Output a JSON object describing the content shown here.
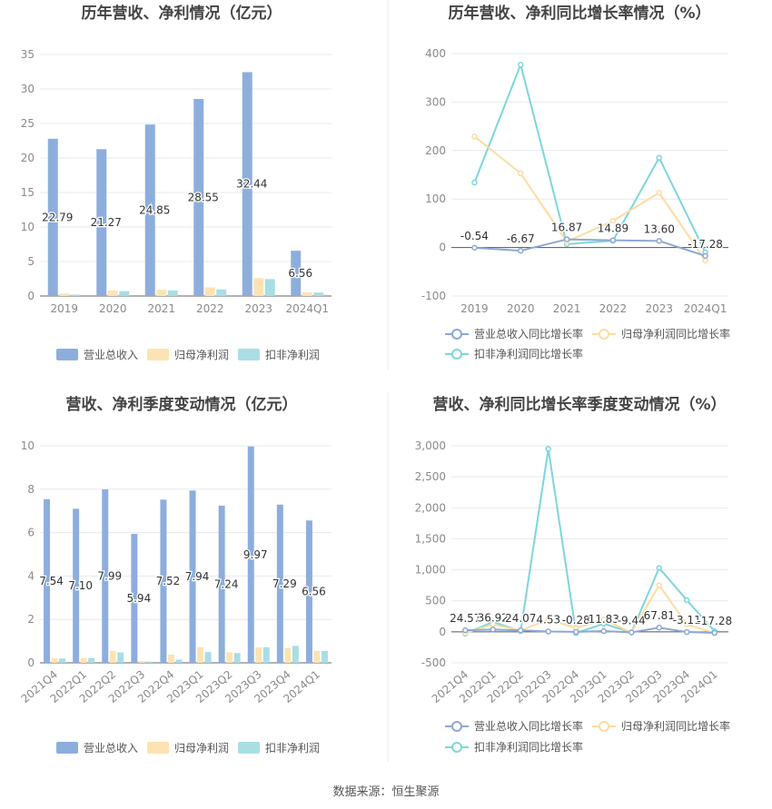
{
  "footer": {
    "source": "数据来源：恒生聚源"
  },
  "colors": {
    "revenue": "#8DAEDD",
    "net_profit": "#FDE3B3",
    "deducted": "#A8DEE4",
    "revenue_line": "#8DA8D5",
    "net_line": "#FDDCA2",
    "deducted_line": "#7DD6DC",
    "grid": "#E6E9F0",
    "axis_text": "#8A8A8A",
    "title_text": "#444444",
    "divider": "#EEEEEE"
  },
  "chart_data": [
    {
      "id": "annual-amounts",
      "type": "bar",
      "title": "历年营收、净利情况（亿元）",
      "categories": [
        "2019",
        "2020",
        "2021",
        "2022",
        "2023",
        "2024Q1"
      ],
      "ylim": [
        0,
        35
      ],
      "yticks": [
        0,
        5,
        10,
        15,
        20,
        25,
        30,
        35
      ],
      "grid": true,
      "legend_position": "bottom",
      "series": [
        {
          "name": "营业总收入",
          "values": [
            22.79,
            21.27,
            24.85,
            28.55,
            32.44,
            6.56
          ],
          "labels": [
            "22.79",
            "21.27",
            "24.85",
            "28.55",
            "32.44",
            "6.56"
          ]
        },
        {
          "name": "归母净利润",
          "values": [
            0.35,
            0.8,
            0.9,
            1.25,
            2.6,
            0.55
          ]
        },
        {
          "name": "扣非净利润",
          "values": [
            0.2,
            0.7,
            0.8,
            0.95,
            2.45,
            0.5
          ]
        }
      ]
    },
    {
      "id": "annual-growth",
      "type": "line",
      "title": "历年营收、净利同比增长率情况（%）",
      "categories": [
        "2019",
        "2020",
        "2021",
        "2022",
        "2023",
        "2024Q1"
      ],
      "ylim": [
        -100,
        400
      ],
      "yticks": [
        -100,
        0,
        100,
        200,
        300,
        400
      ],
      "grid": true,
      "legend_position": "bottom",
      "series": [
        {
          "name": "营业总收入同比增长率",
          "values": [
            -0.54,
            -6.67,
            16.87,
            14.89,
            13.6,
            -17.28
          ],
          "labels": [
            "-0.54",
            "-6.67",
            "16.87",
            "14.89",
            "13.60",
            "-17.28"
          ]
        },
        {
          "name": "归母净利润同比增长率",
          "values": [
            229,
            153,
            12,
            55,
            113,
            -27
          ]
        },
        {
          "name": "扣非净利润同比增长率",
          "values": [
            134,
            377,
            7,
            14,
            185,
            -10
          ]
        }
      ]
    },
    {
      "id": "quarterly-amounts",
      "type": "bar",
      "title": "营收、净利季度变动情况（亿元）",
      "categories": [
        "2021Q4",
        "2022Q1",
        "2022Q2",
        "2022Q3",
        "2022Q4",
        "2023Q1",
        "2023Q2",
        "2023Q3",
        "2023Q4",
        "2024Q1"
      ],
      "ylim": [
        0,
        10
      ],
      "yticks": [
        0,
        2,
        4,
        6,
        8,
        10
      ],
      "grid": true,
      "legend_position": "bottom",
      "series": [
        {
          "name": "营业总收入",
          "values": [
            7.54,
            7.1,
            7.99,
            5.94,
            7.52,
            7.94,
            7.24,
            9.97,
            7.29,
            6.56
          ],
          "labels": [
            "7.54",
            "7.10",
            "7.99",
            "5.94",
            "7.52",
            "7.94",
            "7.24",
            "9.97",
            "7.29",
            "6.56"
          ]
        },
        {
          "name": "归母净利润",
          "values": [
            0.22,
            0.22,
            0.55,
            0.08,
            0.38,
            0.72,
            0.48,
            0.72,
            0.68,
            0.55
          ]
        },
        {
          "name": "扣非净利润",
          "values": [
            0.2,
            0.22,
            0.48,
            0.06,
            0.15,
            0.5,
            0.45,
            0.72,
            0.78,
            0.55
          ]
        }
      ]
    },
    {
      "id": "quarterly-growth",
      "type": "line",
      "title": "营收、净利同比增长率季度变动情况（%）",
      "categories": [
        "2021Q4",
        "2022Q1",
        "2022Q2",
        "2022Q3",
        "2022Q4",
        "2023Q1",
        "2023Q2",
        "2023Q3",
        "2023Q4",
        "2024Q1"
      ],
      "ylim": [
        -500,
        3000
      ],
      "yticks": [
        -500,
        0,
        500,
        1000,
        1500,
        2000,
        2500,
        3000
      ],
      "ytick_labels": [
        "-500",
        "0",
        "500",
        "1,000",
        "1,500",
        "2,000",
        "2,500",
        "3,000"
      ],
      "grid": true,
      "legend_position": "bottom",
      "series": [
        {
          "name": "营业总收入同比增长率",
          "values": [
            24.57,
            36.92,
            24.07,
            4.53,
            -0.28,
            11.83,
            -9.44,
            67.81,
            -3.11,
            -17.28
          ],
          "labels": [
            "24.57",
            "36.92",
            "24.07",
            "4.53",
            "-0.28",
            "11.83",
            "-9.44",
            "67.81",
            "-3.11",
            "-17.28"
          ]
        },
        {
          "name": "归母净利润同比增长率",
          "values": [
            -20,
            120,
            20,
            200,
            60,
            200,
            -10,
            750,
            120,
            -20
          ]
        },
        {
          "name": "扣非净利润同比增长率",
          "values": [
            -30,
            160,
            10,
            2950,
            -20,
            130,
            -10,
            1030,
            510,
            10
          ]
        }
      ]
    }
  ]
}
